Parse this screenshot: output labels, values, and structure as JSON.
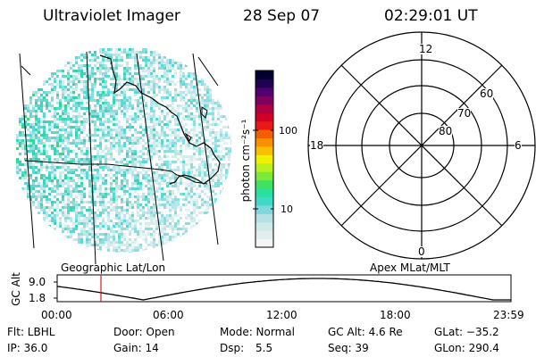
{
  "header": {
    "instrument": "Ultraviolet Imager",
    "date": "28 Sep 07",
    "time": "02:29:01 UT"
  },
  "colorbar": {
    "unit_label": "photon cm⁻²s⁻¹",
    "tick_100": "100",
    "tick_10": "10",
    "colors": [
      "#f4f4f4",
      "#e2eeee",
      "#cfe8e8",
      "#b5e0e6",
      "#7fd8dc",
      "#40d8c8",
      "#28e0a0",
      "#40e060",
      "#7ce838",
      "#b8f020",
      "#f0f000",
      "#f8c000",
      "#f89000",
      "#f06000",
      "#e81818",
      "#d00028",
      "#b00040",
      "#800060",
      "#500070",
      "#200050",
      "#000030"
    ]
  },
  "left_panel": {
    "label": "Geographic Lat/Lon",
    "pixel_colors": [
      "#e8f4f4",
      "#d4ecec",
      "#b8e6ea",
      "#8adede",
      "#5cd8d4",
      "#3cd4b4",
      "#2cd89c",
      "#34dc78"
    ]
  },
  "right_panel": {
    "label": "Apex MLat/MLT",
    "mlt_labels": {
      "top": "12",
      "left": "18",
      "right": "6",
      "bottom": "0"
    },
    "lat_labels": [
      "60",
      "70",
      "80"
    ]
  },
  "timeline": {
    "ylabel": "GC Alt",
    "y_high": "9.0",
    "y_low": "1.8",
    "x_ticks": [
      "00:00",
      "06:00",
      "12:00",
      "18:00",
      "23:59"
    ],
    "marker_color": "#d02020"
  },
  "footer": {
    "flt": "Flt: LBHL",
    "door": "Door: Open",
    "mode": "Mode: Normal",
    "gc_alt": "GC Alt: 4.6 Re",
    "glat": "GLat: −35.2",
    "ip": "IP: 36.0",
    "gain": "Gain: 14",
    "dsp_label": "Dsp:",
    "dsp_value": "5.5",
    "seq": "Seq: 39",
    "glon": "GLon: 290.4"
  }
}
